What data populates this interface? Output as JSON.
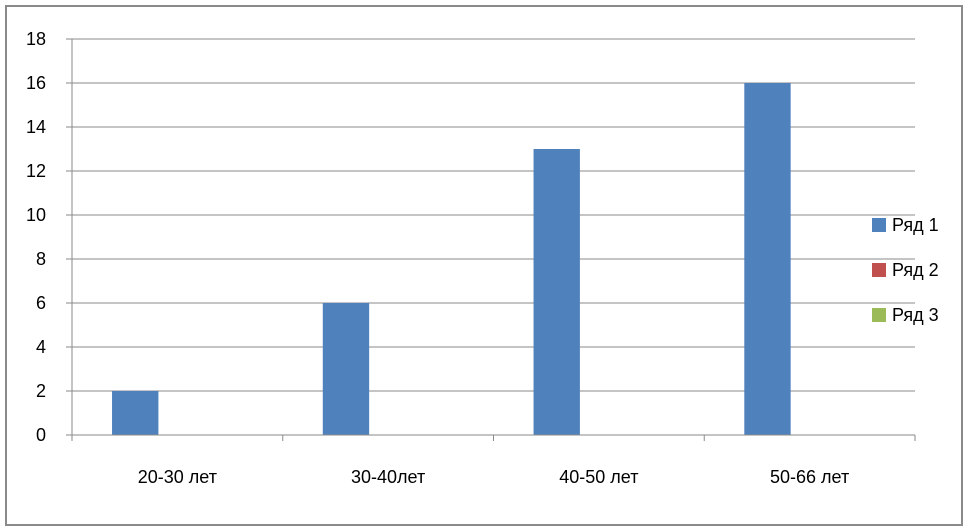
{
  "chart_data": {
    "type": "bar",
    "title": "",
    "xlabel": "",
    "ylabel": "",
    "categories": [
      "20-30 лет",
      "30-40лет",
      "40-50 лет",
      "50-66 лет"
    ],
    "series": [
      {
        "name": "Ряд 1",
        "color": "#4F81BD",
        "values": [
          2,
          6,
          13,
          16
        ]
      },
      {
        "name": "Ряд 2",
        "color": "#C0504D",
        "values": [
          0,
          0,
          0,
          0
        ]
      },
      {
        "name": "Ряд 3",
        "color": "#9BBB59",
        "values": [
          0,
          0,
          0,
          0
        ]
      }
    ],
    "ylim": [
      0,
      18
    ],
    "yticks": [
      0,
      2,
      4,
      6,
      8,
      10,
      12,
      14,
      16,
      18
    ],
    "grid": true,
    "legend_position": "right"
  }
}
